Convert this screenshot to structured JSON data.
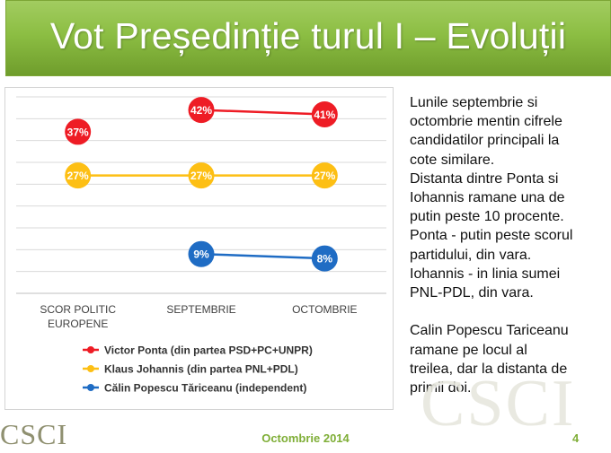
{
  "title": "Vot Președinție turul I – Evoluții",
  "chart_data": {
    "type": "line",
    "categories": [
      "SCOR POLITIC EUROPENE",
      "SEPTEMBRIE",
      "OCTOMBRIE"
    ],
    "category_lines": [
      [
        "SCOR POLITIC",
        "EUROPENE"
      ],
      [
        "SEPTEMBRIE"
      ],
      [
        "OCTOMBRIE"
      ]
    ],
    "ylim": [
      0,
      45
    ],
    "grid": true,
    "legend_position": "bottom",
    "series": [
      {
        "name": "Victor Ponta (din partea PSD+PC+UNPR)",
        "values": [
          37,
          42,
          41
        ],
        "labels": [
          "37%",
          "42%",
          "41%"
        ],
        "color": "#ee1c25",
        "connect_from_index": 1
      },
      {
        "name": "Klaus Johannis (din partea PNL+PDL)",
        "values": [
          27,
          27,
          27
        ],
        "labels": [
          "27%",
          "27%",
          "27%"
        ],
        "color": "#fdbf14",
        "connect_from_index": 0
      },
      {
        "name": "Călin Popescu Tăriceanu (independent)",
        "values": [
          null,
          9,
          8
        ],
        "labels": [
          null,
          "9%",
          "8%"
        ],
        "color": "#1f6cc4",
        "connect_from_index": 1
      }
    ]
  },
  "side_text": {
    "paragraph1": [
      "Lunile septembrie si",
      "octombrie mentin cifrele",
      "candidatilor principali la",
      "cote similare.",
      "Distanta dintre Ponta si",
      "Iohannis ramane una de",
      "putin peste 10 procente.",
      "Ponta - putin peste scorul",
      "partidului, din vara.",
      "Iohannis - in linia sumei",
      "PNL-PDL, din vara."
    ],
    "paragraph2": [
      "Calin Popescu Tariceanu",
      "ramane pe locul al",
      "treilea, dar la distanta de",
      "primii doi."
    ]
  },
  "footer": {
    "date": "Octombrie 2014",
    "page": "4"
  }
}
